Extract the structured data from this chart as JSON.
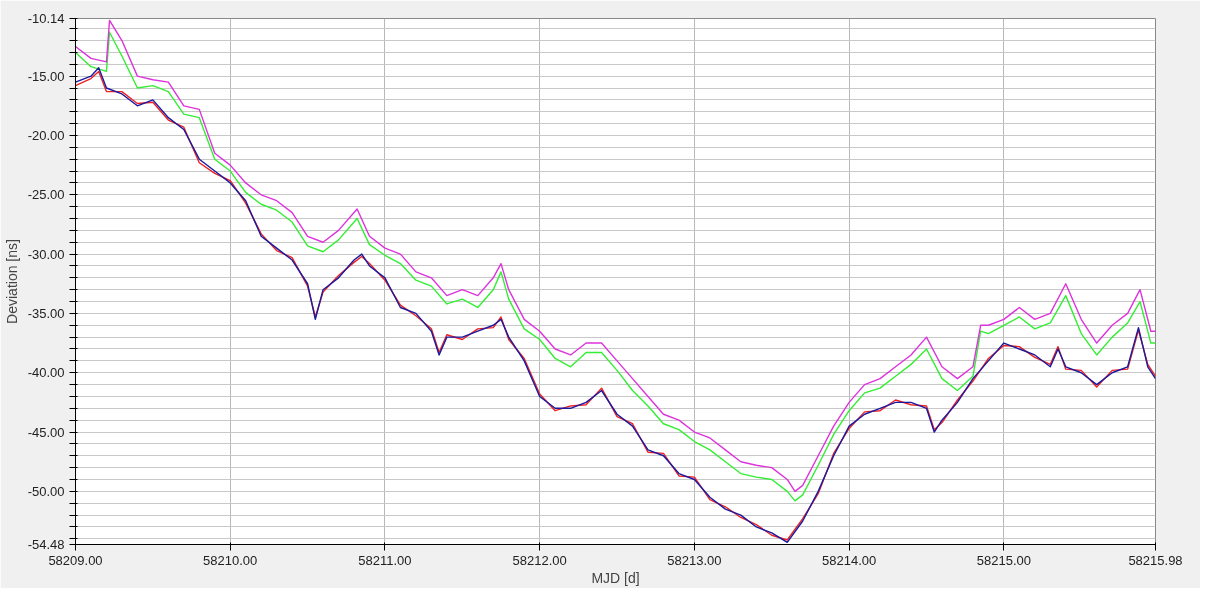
{
  "chart_data": {
    "type": "line",
    "xlabel": "MJD [d]",
    "ylabel": "Deviation [ns]",
    "xlim": [
      58209.0,
      58215.98
    ],
    "ylim": [
      -54.48,
      -10.14
    ],
    "xticks": [
      {
        "value": 58209,
        "label": "58209.00"
      },
      {
        "value": 58210,
        "label": "58210.00"
      },
      {
        "value": 58211,
        "label": "58211.00"
      },
      {
        "value": 58212,
        "label": "58212.00"
      },
      {
        "value": 58213,
        "label": "58213.00"
      },
      {
        "value": 58214,
        "label": "58214.00"
      },
      {
        "value": 58215,
        "label": "58215.00"
      },
      {
        "value": 58215.98,
        "label": "58215.98"
      }
    ],
    "yticks": [
      {
        "value": -10.14,
        "label": "-10.14"
      },
      {
        "value": -11,
        "label": null
      },
      {
        "value": -12,
        "label": null
      },
      {
        "value": -13,
        "label": null
      },
      {
        "value": -14,
        "label": null
      },
      {
        "value": -15,
        "label": "-15.00"
      },
      {
        "value": -16,
        "label": null
      },
      {
        "value": -17,
        "label": null
      },
      {
        "value": -18,
        "label": null
      },
      {
        "value": -19,
        "label": null
      },
      {
        "value": -20,
        "label": "-20.00"
      },
      {
        "value": -21,
        "label": null
      },
      {
        "value": -22,
        "label": null
      },
      {
        "value": -23,
        "label": null
      },
      {
        "value": -24,
        "label": null
      },
      {
        "value": -25,
        "label": "-25.00"
      },
      {
        "value": -26,
        "label": null
      },
      {
        "value": -27,
        "label": null
      },
      {
        "value": -28,
        "label": null
      },
      {
        "value": -29,
        "label": null
      },
      {
        "value": -30,
        "label": "-30.00"
      },
      {
        "value": -31,
        "label": null
      },
      {
        "value": -32,
        "label": null
      },
      {
        "value": -33,
        "label": null
      },
      {
        "value": -34,
        "label": null
      },
      {
        "value": -35,
        "label": "-35.00"
      },
      {
        "value": -36,
        "label": null
      },
      {
        "value": -37,
        "label": null
      },
      {
        "value": -38,
        "label": null
      },
      {
        "value": -39,
        "label": null
      },
      {
        "value": -40,
        "label": "-40.00"
      },
      {
        "value": -41,
        "label": null
      },
      {
        "value": -42,
        "label": null
      },
      {
        "value": -43,
        "label": null
      },
      {
        "value": -44,
        "label": null
      },
      {
        "value": -45,
        "label": "-45.00"
      },
      {
        "value": -46,
        "label": null
      },
      {
        "value": -47,
        "label": null
      },
      {
        "value": -48,
        "label": null
      },
      {
        "value": -49,
        "label": null
      },
      {
        "value": -50,
        "label": "-50.00"
      },
      {
        "value": -51,
        "label": null
      },
      {
        "value": -52,
        "label": null
      },
      {
        "value": -53,
        "label": null
      },
      {
        "value": -54,
        "label": null
      },
      {
        "value": -54.48,
        "label": "-54.48"
      }
    ],
    "grid": true,
    "marker": "none",
    "line_style": "solid",
    "series": [
      {
        "color": "#33ee33",
        "x": [
          58209.0,
          58209.1,
          58209.2,
          58209.22,
          58209.3,
          58209.4,
          58209.5,
          58209.6,
          58209.7,
          58209.8,
          58209.9,
          58210.0,
          58210.1,
          58210.2,
          58210.3,
          58210.4,
          58210.5,
          58210.6,
          58210.7,
          58210.82,
          58210.9,
          58211.0,
          58211.1,
          58211.2,
          58211.3,
          58211.4,
          58211.5,
          58211.6,
          58211.7,
          58211.75,
          58211.8,
          58211.9,
          58212.0,
          58212.1,
          58212.2,
          58212.3,
          58212.4,
          58212.5,
          58212.6,
          58212.7,
          58212.8,
          58212.9,
          58213.0,
          58213.1,
          58213.2,
          58213.3,
          58213.4,
          58213.5,
          58213.6,
          58213.65,
          58213.7,
          58213.8,
          58213.9,
          58214.0,
          58214.1,
          58214.2,
          58214.3,
          58214.4,
          58214.5,
          58214.6,
          58214.7,
          58214.8,
          58214.85,
          58214.9,
          58215.0,
          58215.1,
          58215.2,
          58215.3,
          58215.4,
          58215.5,
          58215.6,
          58215.7,
          58215.8,
          58215.88,
          58215.95,
          58215.98
        ],
        "values": [
          -13.0,
          -14.2,
          -14.6,
          -11.3,
          -13.3,
          -16.0,
          -15.8,
          -16.3,
          -18.2,
          -18.5,
          -22.0,
          -23.0,
          -24.8,
          -25.8,
          -26.3,
          -27.3,
          -29.3,
          -29.8,
          -28.8,
          -27.0,
          -29.2,
          -30.1,
          -30.8,
          -32.2,
          -32.7,
          -34.2,
          -33.8,
          -34.5,
          -33.0,
          -31.5,
          -33.8,
          -36.3,
          -37.2,
          -38.8,
          -39.5,
          -38.3,
          -38.3,
          -39.8,
          -41.5,
          -42.8,
          -44.3,
          -44.8,
          -45.8,
          -46.5,
          -47.5,
          -48.5,
          -48.8,
          -49.0,
          -50.0,
          -50.8,
          -50.3,
          -47.8,
          -45.2,
          -43.2,
          -41.7,
          -41.3,
          -40.3,
          -39.3,
          -38.0,
          -40.5,
          -41.5,
          -40.3,
          -36.5,
          -36.7,
          -36.0,
          -35.3,
          -36.3,
          -35.8,
          -33.5,
          -36.7,
          -38.5,
          -37.0,
          -35.8,
          -34.0,
          -37.5,
          -37.5
        ]
      },
      {
        "color": "#dd33dd",
        "x": [
          58209.0,
          58209.1,
          58209.2,
          58209.22,
          58209.3,
          58209.4,
          58209.5,
          58209.6,
          58209.7,
          58209.8,
          58209.9,
          58210.0,
          58210.1,
          58210.2,
          58210.3,
          58210.4,
          58210.5,
          58210.6,
          58210.7,
          58210.82,
          58210.9,
          58211.0,
          58211.1,
          58211.2,
          58211.3,
          58211.4,
          58211.5,
          58211.6,
          58211.7,
          58211.75,
          58211.8,
          58211.9,
          58212.0,
          58212.1,
          58212.2,
          58212.3,
          58212.4,
          58212.5,
          58212.6,
          58212.7,
          58212.8,
          58212.9,
          58213.0,
          58213.1,
          58213.2,
          58213.3,
          58213.4,
          58213.5,
          58213.6,
          58213.65,
          58213.7,
          58213.8,
          58213.9,
          58214.0,
          58214.1,
          58214.2,
          58214.3,
          58214.4,
          58214.5,
          58214.6,
          58214.7,
          58214.8,
          58214.85,
          58214.9,
          58215.0,
          58215.1,
          58215.2,
          58215.3,
          58215.4,
          58215.5,
          58215.6,
          58215.7,
          58215.8,
          58215.88,
          58215.95,
          58215.98
        ],
        "values": [
          -12.5,
          -13.5,
          -13.8,
          -10.3,
          -12.0,
          -15.0,
          -15.3,
          -15.5,
          -17.5,
          -17.8,
          -21.5,
          -22.5,
          -24.0,
          -25.0,
          -25.5,
          -26.5,
          -28.5,
          -29.0,
          -28.0,
          -26.2,
          -28.5,
          -29.5,
          -30.0,
          -31.5,
          -32.0,
          -33.5,
          -33.0,
          -33.5,
          -32.0,
          -30.8,
          -33.0,
          -35.5,
          -36.5,
          -38.0,
          -38.5,
          -37.5,
          -37.5,
          -39.0,
          -40.5,
          -42.0,
          -43.5,
          -44.0,
          -45.0,
          -45.5,
          -46.5,
          -47.5,
          -47.8,
          -48.0,
          -49.0,
          -50.0,
          -49.5,
          -47.0,
          -44.5,
          -42.5,
          -41.0,
          -40.5,
          -39.5,
          -38.5,
          -37.0,
          -39.5,
          -40.5,
          -39.5,
          -36.0,
          -36.0,
          -35.5,
          -34.5,
          -35.5,
          -35.0,
          -32.5,
          -35.5,
          -37.5,
          -36.0,
          -35.0,
          -33.0,
          -36.5,
          -36.5
        ]
      },
      {
        "color": "#ee2222",
        "x": [
          58209.0,
          58209.1,
          58209.15,
          58209.2,
          58209.3,
          58209.4,
          58209.5,
          58209.6,
          58209.7,
          58209.8,
          58209.9,
          58210.0,
          58210.1,
          58210.2,
          58210.3,
          58210.4,
          58210.5,
          58210.55,
          58210.6,
          58210.7,
          58210.8,
          58210.85,
          58210.9,
          58211.0,
          58211.1,
          58211.2,
          58211.3,
          58211.35,
          58211.4,
          58211.5,
          58211.6,
          58211.7,
          58211.75,
          58211.8,
          58211.9,
          58212.0,
          58212.1,
          58212.2,
          58212.3,
          58212.4,
          58212.5,
          58212.6,
          58212.7,
          58212.8,
          58212.9,
          58213.0,
          58213.1,
          58213.2,
          58213.3,
          58213.4,
          58213.5,
          58213.6,
          58213.7,
          58213.8,
          58213.9,
          58214.0,
          58214.1,
          58214.2,
          58214.3,
          58214.4,
          58214.5,
          58214.55,
          58214.6,
          58214.7,
          58214.8,
          58214.9,
          58215.0,
          58215.1,
          58215.2,
          58215.3,
          58215.35,
          58215.4,
          58215.5,
          58215.6,
          58215.7,
          58215.8,
          58215.87,
          58215.93,
          58215.98
        ],
        "values": [
          -15.8,
          -15.2,
          -14.6,
          -16.3,
          -16.3,
          -17.3,
          -17.2,
          -18.7,
          -19.3,
          -22.3,
          -23.2,
          -23.8,
          -25.7,
          -28.3,
          -29.7,
          -30.3,
          -32.7,
          -35.3,
          -33.2,
          -31.8,
          -30.7,
          -30.2,
          -30.8,
          -32.2,
          -34.3,
          -35.2,
          -36.3,
          -38.3,
          -36.8,
          -37.2,
          -36.3,
          -36.2,
          -35.3,
          -37.2,
          -38.8,
          -41.8,
          -43.2,
          -42.8,
          -42.7,
          -41.3,
          -43.7,
          -44.3,
          -46.7,
          -46.8,
          -48.7,
          -48.8,
          -50.7,
          -51.3,
          -52.2,
          -52.8,
          -53.7,
          -54.1,
          -52.3,
          -50.2,
          -46.8,
          -44.7,
          -43.3,
          -43.2,
          -42.3,
          -42.7,
          -42.8,
          -44.8,
          -44.2,
          -42.3,
          -40.7,
          -38.8,
          -37.7,
          -37.8,
          -38.7,
          -39.3,
          -37.8,
          -39.7,
          -39.8,
          -41.2,
          -39.8,
          -39.7,
          -36.4,
          -39.3,
          -40.3
        ]
      },
      {
        "color": "#1a1aa0",
        "x": [
          58209.0,
          58209.1,
          58209.15,
          58209.2,
          58209.3,
          58209.4,
          58209.5,
          58209.6,
          58209.7,
          58209.8,
          58209.9,
          58210.0,
          58210.1,
          58210.2,
          58210.3,
          58210.4,
          58210.5,
          58210.55,
          58210.6,
          58210.7,
          58210.8,
          58210.85,
          58210.9,
          58211.0,
          58211.1,
          58211.2,
          58211.3,
          58211.35,
          58211.4,
          58211.5,
          58211.6,
          58211.7,
          58211.75,
          58211.8,
          58211.9,
          58212.0,
          58212.1,
          58212.2,
          58212.3,
          58212.4,
          58212.5,
          58212.6,
          58212.7,
          58212.8,
          58212.9,
          58213.0,
          58213.1,
          58213.2,
          58213.3,
          58213.4,
          58213.5,
          58213.6,
          58213.7,
          58213.8,
          58213.9,
          58214.0,
          58214.1,
          58214.2,
          58214.3,
          58214.4,
          58214.5,
          58214.55,
          58214.6,
          58214.7,
          58214.8,
          58214.9,
          58215.0,
          58215.1,
          58215.2,
          58215.3,
          58215.35,
          58215.4,
          58215.5,
          58215.6,
          58215.7,
          58215.8,
          58215.87,
          58215.93,
          58215.98
        ],
        "values": [
          -15.5,
          -15.0,
          -14.3,
          -16.0,
          -16.5,
          -17.5,
          -17.0,
          -18.5,
          -19.5,
          -22.0,
          -23.0,
          -24.0,
          -25.5,
          -28.5,
          -29.5,
          -30.5,
          -32.5,
          -35.5,
          -33.0,
          -32.0,
          -30.5,
          -30.0,
          -31.0,
          -32.0,
          -34.5,
          -35.0,
          -36.5,
          -38.5,
          -37.0,
          -37.0,
          -36.5,
          -36.0,
          -35.5,
          -37.0,
          -39.0,
          -42.0,
          -43.0,
          -43.0,
          -42.5,
          -41.5,
          -43.5,
          -44.5,
          -46.5,
          -47.0,
          -48.5,
          -49.0,
          -50.5,
          -51.5,
          -52.0,
          -53.0,
          -53.5,
          -54.3,
          -52.5,
          -50.0,
          -47.0,
          -44.5,
          -43.5,
          -43.0,
          -42.5,
          -42.5,
          -43.0,
          -45.0,
          -44.0,
          -42.5,
          -40.5,
          -39.0,
          -37.5,
          -38.0,
          -38.5,
          -39.5,
          -38.0,
          -39.5,
          -40.0,
          -41.0,
          -40.0,
          -39.5,
          -36.2,
          -39.5,
          -40.5
        ]
      }
    ]
  }
}
